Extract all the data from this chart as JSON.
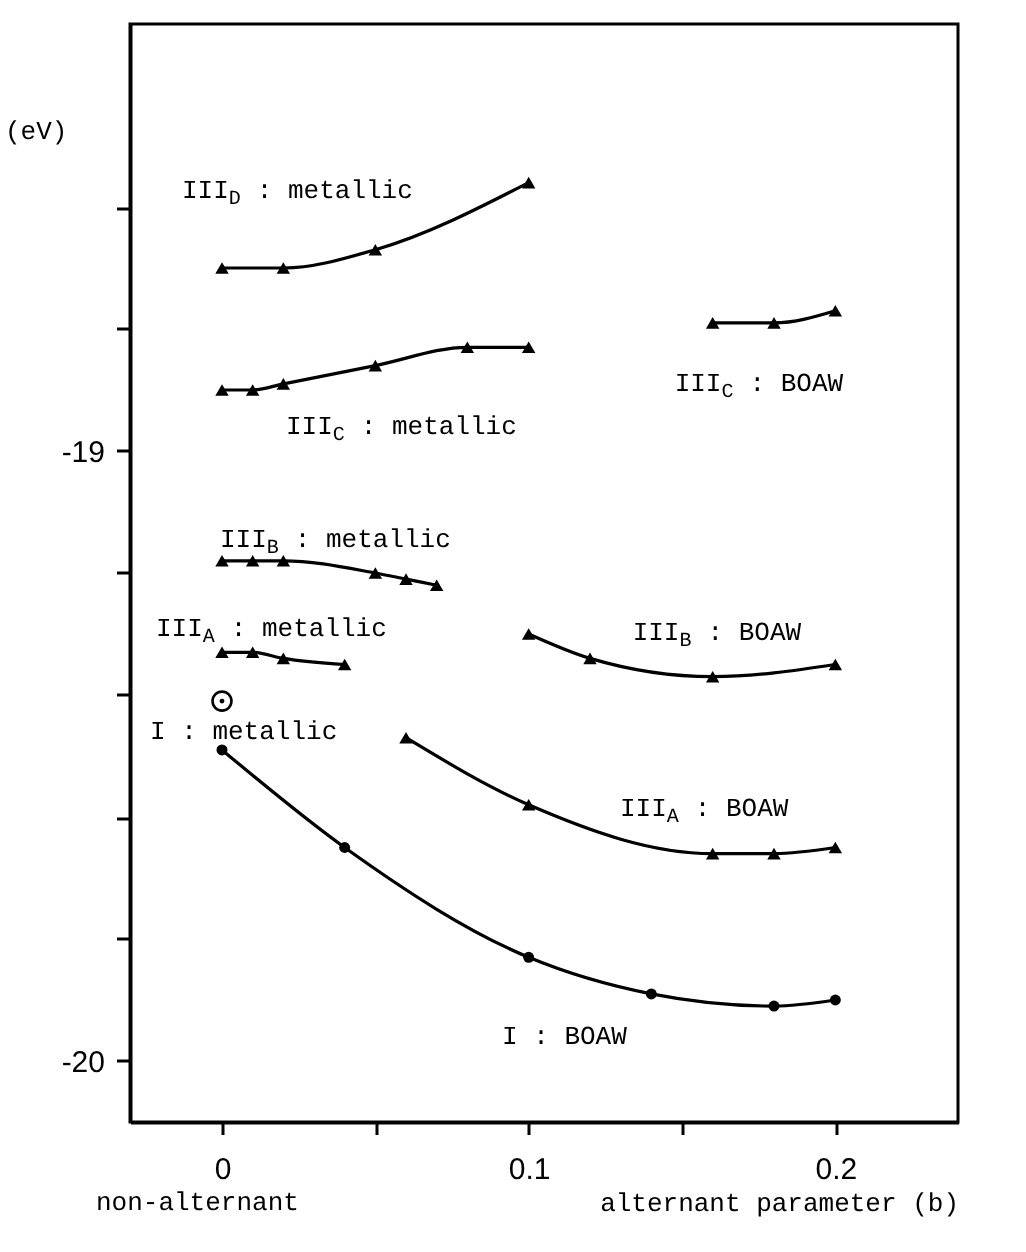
{
  "chart_data": {
    "type": "line",
    "ylabel": "(eV)",
    "xlabel": "alternant parameter (b)",
    "annotations": [
      "non-alternant"
    ],
    "xlim": [
      -0.03,
      0.24
    ],
    "xticks": [
      0,
      {
        "value": 0.05,
        "label": null
      },
      0.1,
      {
        "value": 0.15,
        "label": null
      },
      0.2
    ],
    "ylim": [
      -20.1,
      -18.3
    ],
    "yticks": [
      {
        "value": -18.6,
        "label": null
      },
      {
        "value": -18.8,
        "label": null
      },
      -19,
      {
        "value": -19.2,
        "label": null
      },
      {
        "value": -19.4,
        "label": null
      },
      {
        "value": -19.6,
        "label": null
      },
      {
        "value": -19.8,
        "label": null
      },
      -20
    ],
    "grid": false,
    "line_style": "solid",
    "series": [
      {
        "name": "III$_{D}$ : metallic",
        "type": "line",
        "marker": "triangle",
        "color": "#000000",
        "x": [
          0,
          0.02,
          0.05,
          0.1
        ],
        "values": [
          -18.7,
          -18.7,
          -18.67,
          -18.56
        ]
      },
      {
        "name": "III$_{C}$ : metallic",
        "type": "line",
        "marker": "triangle",
        "color": "#000000",
        "x": [
          0,
          0.01,
          0.02,
          0.05,
          0.08,
          0.1
        ],
        "values": [
          -18.9,
          -18.9,
          -18.89,
          -18.86,
          -18.83,
          -18.83
        ]
      },
      {
        "name": "III$_{C}$ : BOAW",
        "type": "line",
        "marker": "triangle",
        "color": "#000000",
        "x": [
          0.16,
          0.18,
          0.2
        ],
        "values": [
          -18.79,
          -18.79,
          -18.77
        ]
      },
      {
        "name": "III$_{B}$ : metallic",
        "type": "line",
        "marker": "triangle",
        "color": "#000000",
        "x": [
          0,
          0.01,
          0.02,
          0.05,
          0.06,
          0.07
        ],
        "values": [
          -19.18,
          -19.18,
          -19.18,
          -19.2,
          -19.21,
          -19.22
        ]
      },
      {
        "name": "III$_{B}$ : BOAW",
        "type": "line",
        "marker": "triangle",
        "color": "#000000",
        "x": [
          0.1,
          0.12,
          0.16,
          0.2
        ],
        "values": [
          -19.3,
          -19.34,
          -19.37,
          -19.35
        ]
      },
      {
        "name": "III$_{A}$ : metallic",
        "type": "line",
        "marker": "triangle",
        "color": "#000000",
        "x": [
          0,
          0.01,
          0.02,
          0.04
        ],
        "values": [
          -19.33,
          -19.33,
          -19.34,
          -19.35
        ]
      },
      {
        "name": "III$_{A}$ : BOAW",
        "type": "line",
        "marker": "triangle",
        "color": "#000000",
        "x": [
          0.06,
          0.1,
          0.16,
          0.18,
          0.2
        ],
        "values": [
          -19.47,
          -19.58,
          -19.66,
          -19.66,
          -19.65
        ]
      },
      {
        "name": "I : metallic",
        "type": "scatter",
        "marker": "circle",
        "color": "#000000",
        "x": [
          0
        ],
        "values": [
          -19.41
        ]
      },
      {
        "name": "I : BOAW",
        "type": "line",
        "marker": "circle",
        "color": "#000000",
        "x": [
          0,
          0.04,
          0.1,
          0.14,
          0.18,
          0.2
        ],
        "values": [
          -19.49,
          -19.65,
          -19.83,
          -19.89,
          -19.91,
          -19.9
        ]
      }
    ]
  }
}
